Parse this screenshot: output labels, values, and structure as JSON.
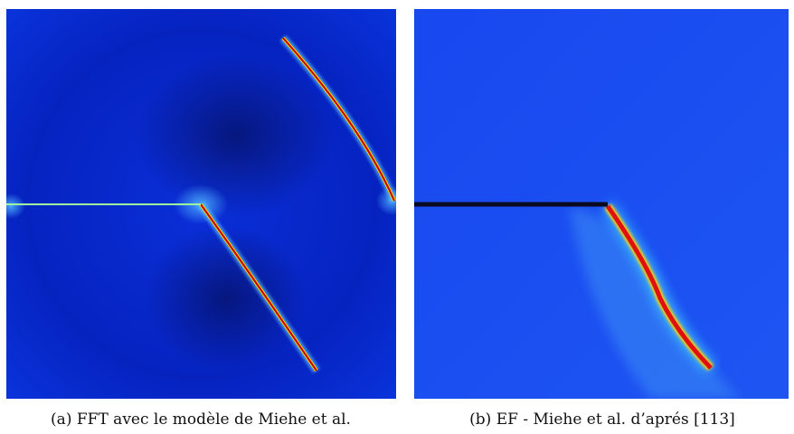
{
  "figure": {
    "subfigures": [
      {
        "caption": "(a) FFT avec le modèle de Miehe et al."
      },
      {
        "caption": "(b) EF - Miehe et al. d’aprés [113]"
      }
    ]
  }
}
